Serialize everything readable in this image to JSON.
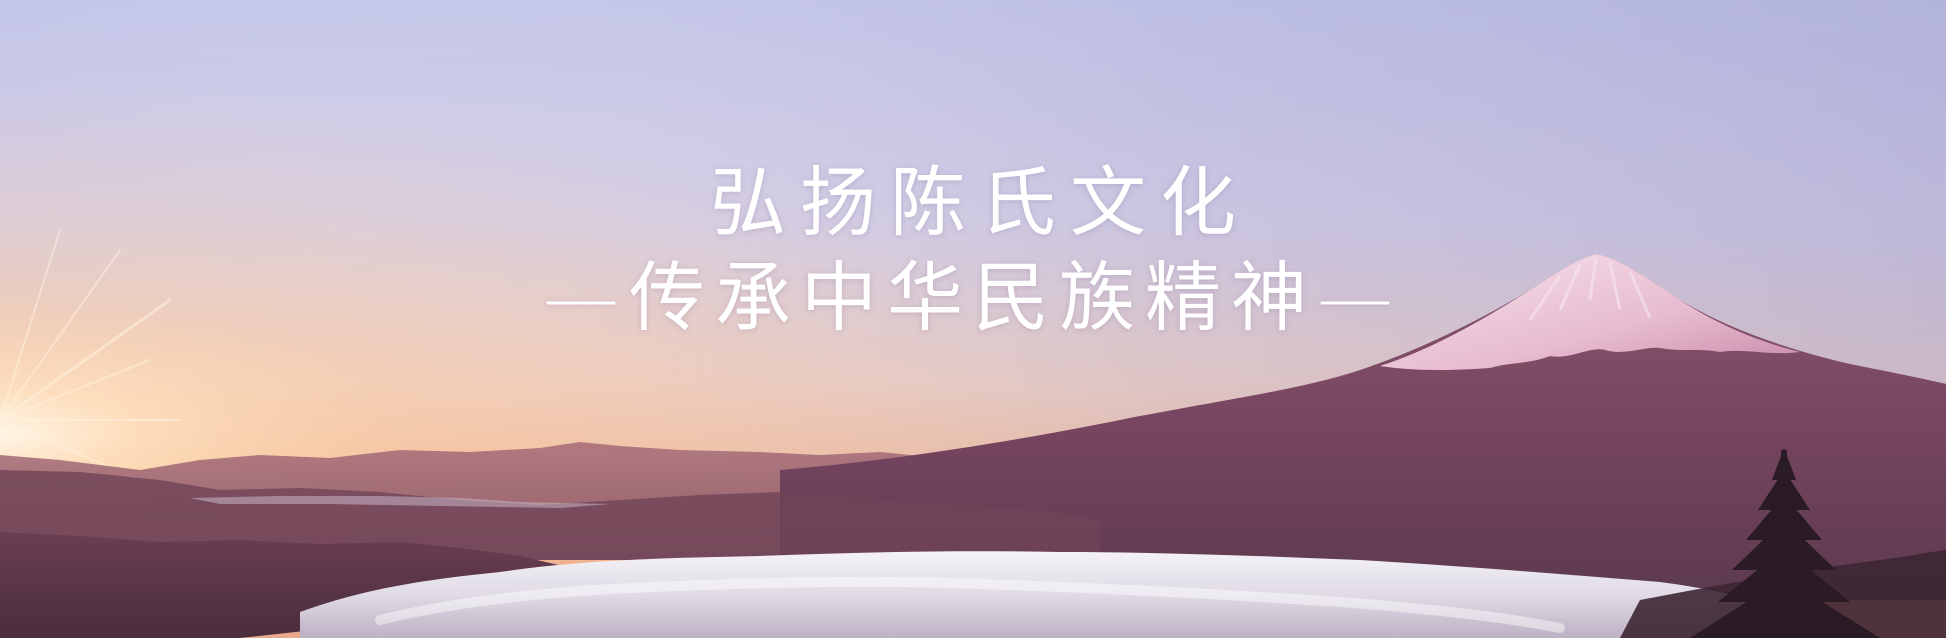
{
  "banner": {
    "title_line1": "弘扬陈氏文化",
    "title_line2": "—传承中华民族精神—"
  },
  "colors": {
    "sky_top": "#c6c8e8",
    "sky_mid": "#efd3c6",
    "horizon_glow": "#f6b07e",
    "mountain": "#7d4a63",
    "snow_cap": "#f1dbe6",
    "cloud_sea": "#ecebf2",
    "text": "#ffffff"
  }
}
